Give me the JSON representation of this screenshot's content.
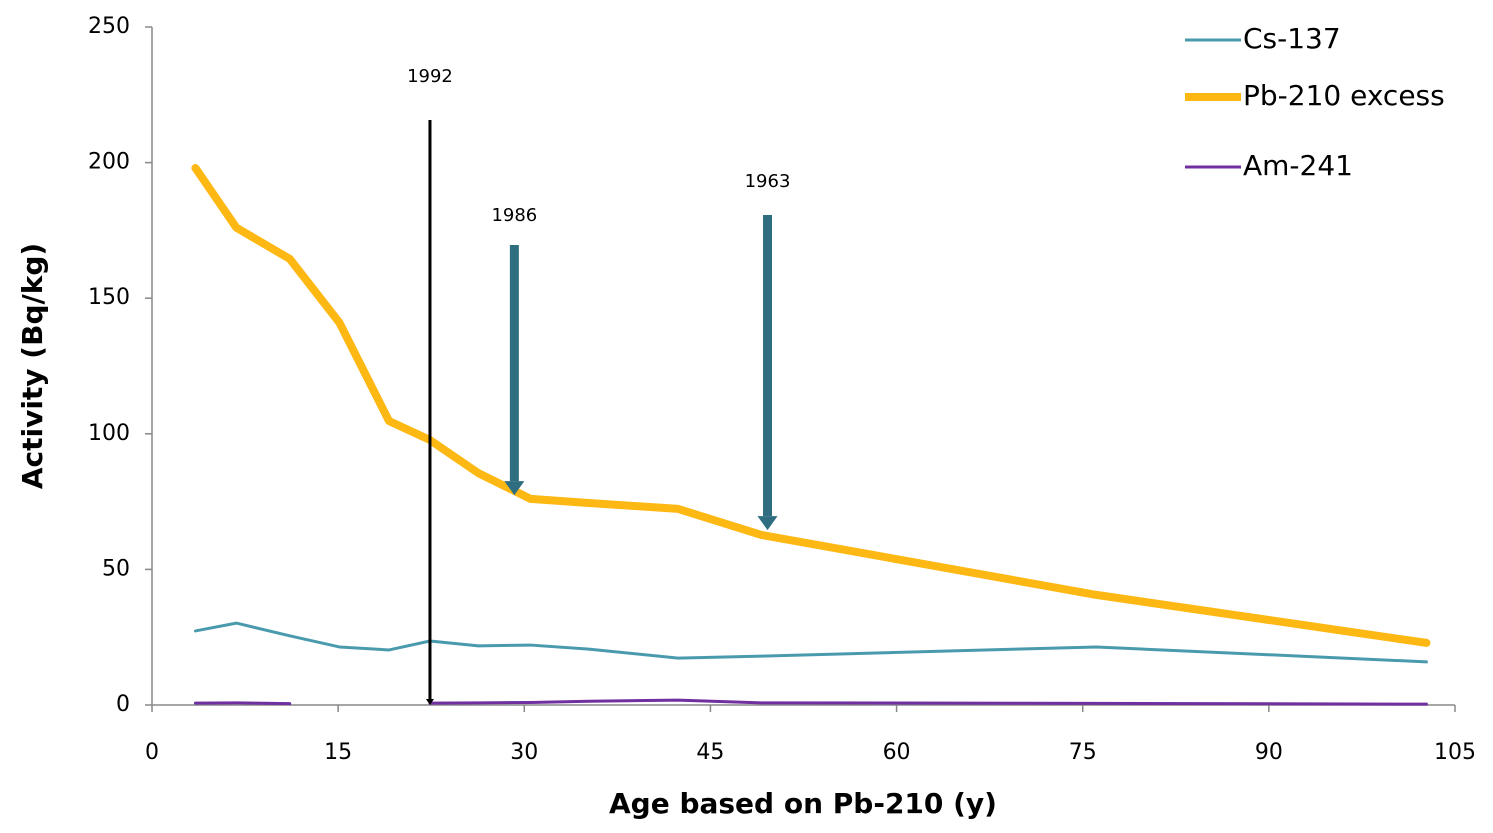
{
  "chart_data": {
    "type": "line",
    "x_label": "Age based on Pb-210 (y)",
    "y_label": "Activity (Bq/kg)",
    "x": [
      3.5,
      6.8,
      11.1,
      15.1,
      19.1,
      22.4,
      26.3,
      30.5,
      35.2,
      42.4,
      49.1,
      76.1,
      102.7
    ],
    "series": [
      {
        "name": "Cs-137",
        "color": "#4a9aad",
        "values": [
          27.3,
          30.2,
          25.5,
          21.4,
          20.3,
          23.6,
          21.8,
          22.1,
          20.6,
          17.3,
          18,
          21.4,
          15.9
        ]
      },
      {
        "name": "Pb-210 excess",
        "color": "#fdb813",
        "values": [
          198,
          176,
          164.5,
          141,
          104.7,
          97.7,
          85.5,
          76,
          74.5,
          72.3,
          62.7,
          40.6,
          22.9
        ]
      },
      {
        "name": "Am-241",
        "color": "#7030a0",
        "values": [
          0.7,
          0.8,
          0.5,
          null,
          null,
          0.7,
          0.8,
          0.9,
          1.4,
          1.8,
          0.8,
          0.6,
          0.3
        ]
      }
    ],
    "xlim": [
      0,
      105
    ],
    "xticks": [
      0,
      15,
      30,
      45,
      60,
      75,
      90,
      105
    ],
    "ylim": [
      0,
      250
    ],
    "yticks": [
      0,
      50,
      100,
      150,
      200,
      250
    ],
    "grid": false,
    "legend": "top-right",
    "annotations": [
      {
        "label": "1992",
        "x": 22.4,
        "y": 0,
        "color": "#000000"
      },
      {
        "label": "1986",
        "x": 29.2,
        "y": 77.4,
        "color": "#2e6e80"
      },
      {
        "label": "1963",
        "x": 49.6,
        "y": 64.5,
        "color": "#2e6e80"
      }
    ]
  }
}
